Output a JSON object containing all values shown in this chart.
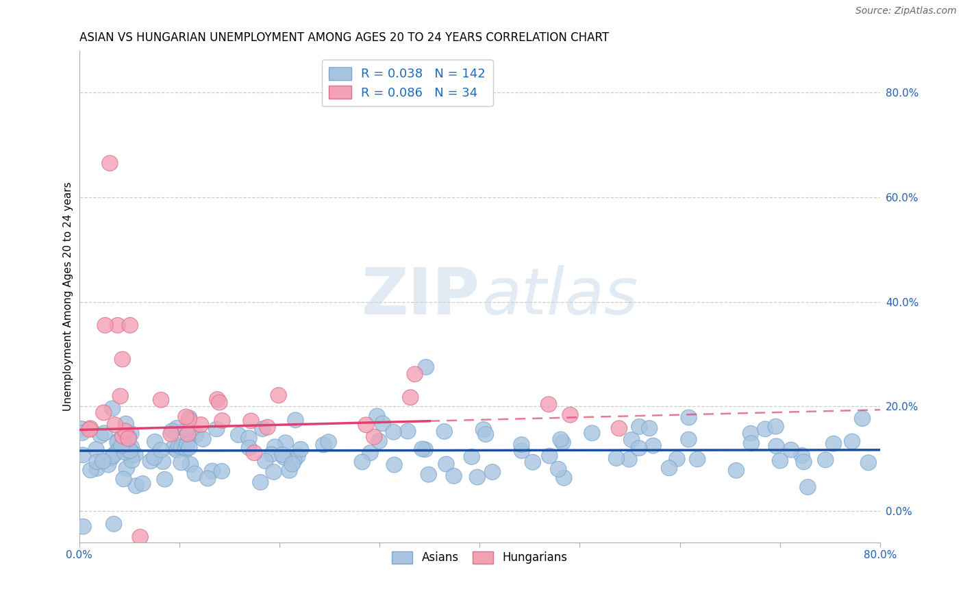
{
  "title": "ASIAN VS HUNGARIAN UNEMPLOYMENT AMONG AGES 20 TO 24 YEARS CORRELATION CHART",
  "source": "Source: ZipAtlas.com",
  "ylabel": "Unemployment Among Ages 20 to 24 years",
  "xlim": [
    0.0,
    0.8
  ],
  "ylim": [
    -0.06,
    0.88
  ],
  "xtick_positions": [
    0.0,
    0.1,
    0.2,
    0.3,
    0.4,
    0.5,
    0.6,
    0.7,
    0.8
  ],
  "xtick_labels": [
    "0.0%",
    "",
    "",
    "",
    "",
    "",
    "",
    "",
    "80.0%"
  ],
  "ytick_right_vals": [
    0.0,
    0.2,
    0.4,
    0.6,
    0.8
  ],
  "ytick_right_labels": [
    "0.0%",
    "20.0%",
    "40.0%",
    "60.0%",
    "80.0%"
  ],
  "asian_R": 0.038,
  "asian_N": 142,
  "hungarian_R": 0.086,
  "hungarian_N": 34,
  "asian_scatter_color": "#a8c4e0",
  "asian_scatter_edge": "#7aa8cc",
  "asian_line_color": "#1a4fa0",
  "hung_scatter_color": "#f4a0b5",
  "hung_scatter_edge": "#d87090",
  "hung_line_color": "#e04070",
  "hung_line_solid_end": 0.35,
  "asian_trend_intercept": 0.115,
  "asian_trend_slope": 0.002,
  "hung_trend_intercept": 0.155,
  "hung_trend_slope": 0.048,
  "title_fontsize": 12,
  "tick_fontsize": 11,
  "label_fontsize": 11,
  "source_fontsize": 10,
  "legend_fontsize": 13
}
